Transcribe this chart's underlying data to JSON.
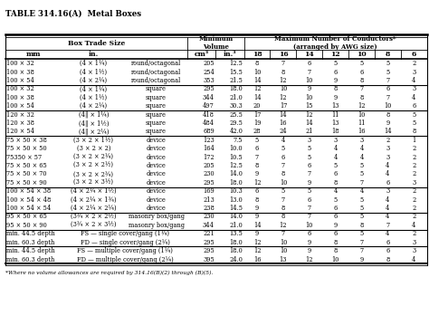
{
  "title": "TABLE 314.16(A)  Metal Boxes",
  "footnote": "*Where no volume allowances are required by 314.16(B)(2) through (B)(5).",
  "groups": [
    {
      "rows": [
        [
          "100 × 32",
          "(4 × 1¼)",
          "round/octagonal",
          "205",
          "12.5",
          "8",
          "7",
          "6",
          "5",
          "5",
          "5",
          "2"
        ],
        [
          "100 × 38",
          "(4 × 1½)",
          "round/octagonal",
          "254",
          "15.5",
          "10",
          "8",
          "7",
          "6",
          "6",
          "5",
          "3"
        ],
        [
          "100 × 54",
          "(4 × 2¼)",
          "round/octagonal",
          "353",
          "21.5",
          "14",
          "12",
          "10",
          "9",
          "8",
          "7",
          "4"
        ]
      ],
      "span_col1": false
    },
    {
      "rows": [
        [
          "100 × 32",
          "(4 × 1¼)",
          "square",
          "295",
          "18.0",
          "12",
          "10",
          "9",
          "8",
          "7",
          "6",
          "3"
        ],
        [
          "100 × 38",
          "(4 × 1½)",
          "square",
          "344",
          "21.0",
          "14",
          "12",
          "10",
          "9",
          "8",
          "7",
          "4"
        ],
        [
          "100 × 54",
          "(4 × 2¼)",
          "square",
          "497",
          "30.3",
          "20",
          "17",
          "15",
          "13",
          "12",
          "10",
          "6"
        ]
      ],
      "span_col1": false
    },
    {
      "rows": [
        [
          "120 × 32",
          "(4‖ × 1¼)",
          "square",
          "418",
          "25.5",
          "17",
          "14",
          "12",
          "11",
          "10",
          "8",
          "5"
        ],
        [
          "120 × 38",
          "(4‖ × 1½)",
          "square",
          "484",
          "29.5",
          "19",
          "16",
          "14",
          "13",
          "11",
          "9",
          "5"
        ],
        [
          "120 × 54",
          "(4‖ × 2¼)",
          "square",
          "689",
          "42.0",
          "28",
          "24",
          "21",
          "18",
          "16",
          "14",
          "8"
        ]
      ],
      "span_col1": false
    },
    {
      "rows": [
        [
          "75 × 50 × 38",
          "(3 × 2 × 1½)",
          "device",
          "123",
          "7.5",
          "5",
          "4",
          "3",
          "3",
          "3",
          "2",
          "1"
        ],
        [
          "75 × 50 × 50",
          "(3 × 2 × 2)",
          "device",
          "164",
          "10.0",
          "6",
          "5",
          "5",
          "4",
          "4",
          "3",
          "2"
        ],
        [
          "75350 × 57",
          "(3 × 2 × 2¼)",
          "device",
          "172",
          "10.5",
          "7",
          "6",
          "5",
          "4",
          "4",
          "3",
          "2"
        ],
        [
          "75 × 50 × 65",
          "(3 × 2 × 2½)",
          "device",
          "205",
          "12.5",
          "8",
          "7",
          "6",
          "5",
          "5",
          "4",
          "2"
        ],
        [
          "75 × 50 × 70",
          "(3 × 2 × 2¾)",
          "device",
          "230",
          "14.0",
          "9",
          "8",
          "7",
          "6",
          "5",
          "4",
          "2"
        ],
        [
          "75 × 50 × 90",
          "(3 × 2 × 3½)",
          "device",
          "295",
          "18.0",
          "12",
          "10",
          "9",
          "8",
          "7",
          "6",
          "3"
        ]
      ],
      "span_col1": false
    },
    {
      "rows": [
        [
          "100 × 54 × 38",
          "(4 × 2¼ × 1½)",
          "device",
          "169",
          "10.3",
          "6",
          "5",
          "5",
          "4",
          "4",
          "3",
          "2"
        ],
        [
          "100 × 54 × 48",
          "(4 × 2¼ × 1¾)",
          "device",
          "213",
          "13.0",
          "8",
          "7",
          "6",
          "5",
          "5",
          "4",
          "2"
        ],
        [
          "100 × 54 × 54",
          "(4 × 2¼ × 2¼)",
          "device",
          "238",
          "14.5",
          "9",
          "8",
          "7",
          "6",
          "5",
          "4",
          "2"
        ]
      ],
      "span_col1": false
    },
    {
      "rows": [
        [
          "95 × 50 × 65",
          "(3¾ × 2 × 2½)",
          "masonry box/gang",
          "230",
          "14.0",
          "9",
          "8",
          "7",
          "6",
          "5",
          "4",
          "2"
        ],
        [
          "95 × 50 × 90",
          "(3¾ × 2 × 3½)",
          "masonry box/gang",
          "344",
          "21.0",
          "14",
          "12",
          "10",
          "9",
          "8",
          "7",
          "4"
        ]
      ],
      "span_col1": false
    },
    {
      "rows": [
        [
          "min. 44.5 depth",
          "FS — single cover/gang (1¼)",
          "",
          "221",
          "13.5",
          "9",
          "7",
          "6",
          "6",
          "5",
          "4",
          "2"
        ],
        [
          "min. 60.3 depth",
          "FD — single cover/gang (2¼)",
          "",
          "295",
          "18.0",
          "12",
          "10",
          "9",
          "8",
          "7",
          "6",
          "3"
        ]
      ],
      "span_col1": true
    },
    {
      "rows": [
        [
          "min. 44.5 depth",
          "FS — multiple cover/gang (1¼)",
          "",
          "295",
          "18.0",
          "12",
          "10",
          "9",
          "8",
          "7",
          "6",
          "3"
        ],
        [
          "min. 60.3 depth",
          "FD — multiple cover/gang (2¼)",
          "",
          "395",
          "24.0",
          "16",
          "13",
          "12",
          "10",
          "9",
          "8",
          "4"
        ]
      ],
      "span_col1": true
    }
  ],
  "col_props": [
    0.105,
    0.115,
    0.115,
    0.052,
    0.052,
    0.048,
    0.048,
    0.048,
    0.048,
    0.048,
    0.048,
    0.048
  ]
}
